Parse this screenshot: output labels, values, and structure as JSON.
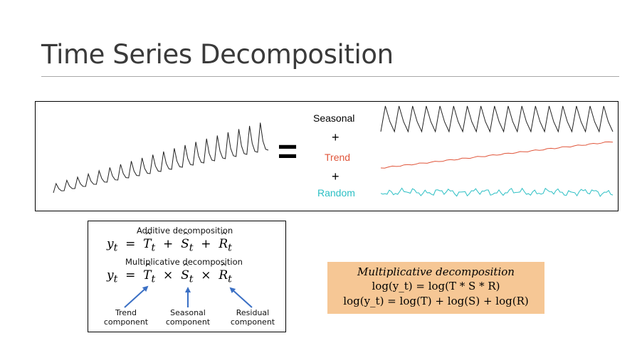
{
  "title": "Time Series Decomposition",
  "decomposition_panel": {
    "equals": "=",
    "components": [
      {
        "label": "Seasonal",
        "color": "#000000"
      },
      {
        "label": "Trend",
        "color": "#e0553a"
      },
      {
        "label": "Random",
        "color": "#2bbfc4"
      }
    ],
    "plus": "+"
  },
  "formula_box": {
    "additive_heading": "Additive decomposition",
    "multiplicative_heading": "Multiplicative decomposition",
    "additive_formula": {
      "lhs": "y",
      "sub": "t",
      "op": "+",
      "terms": [
        "T",
        "S",
        "R"
      ]
    },
    "multiplicative_formula": {
      "lhs": "y",
      "sub": "t",
      "op": "×",
      "terms": [
        "T",
        "S",
        "R"
      ]
    },
    "arrow_color": "#3a6fc4",
    "labels": [
      {
        "line1": "Trend",
        "line2": "component"
      },
      {
        "line1": "Seasonal",
        "line2": "component"
      },
      {
        "line1": "Residual",
        "line2": "component"
      }
    ]
  },
  "highlight_box": {
    "color": "#f6c795",
    "heading": "Multiplicative decomposition",
    "line1": "log(y_t) = log(T * S * R)",
    "line2": "log(y_t) = log(T) + log(S) + log(R)"
  }
}
